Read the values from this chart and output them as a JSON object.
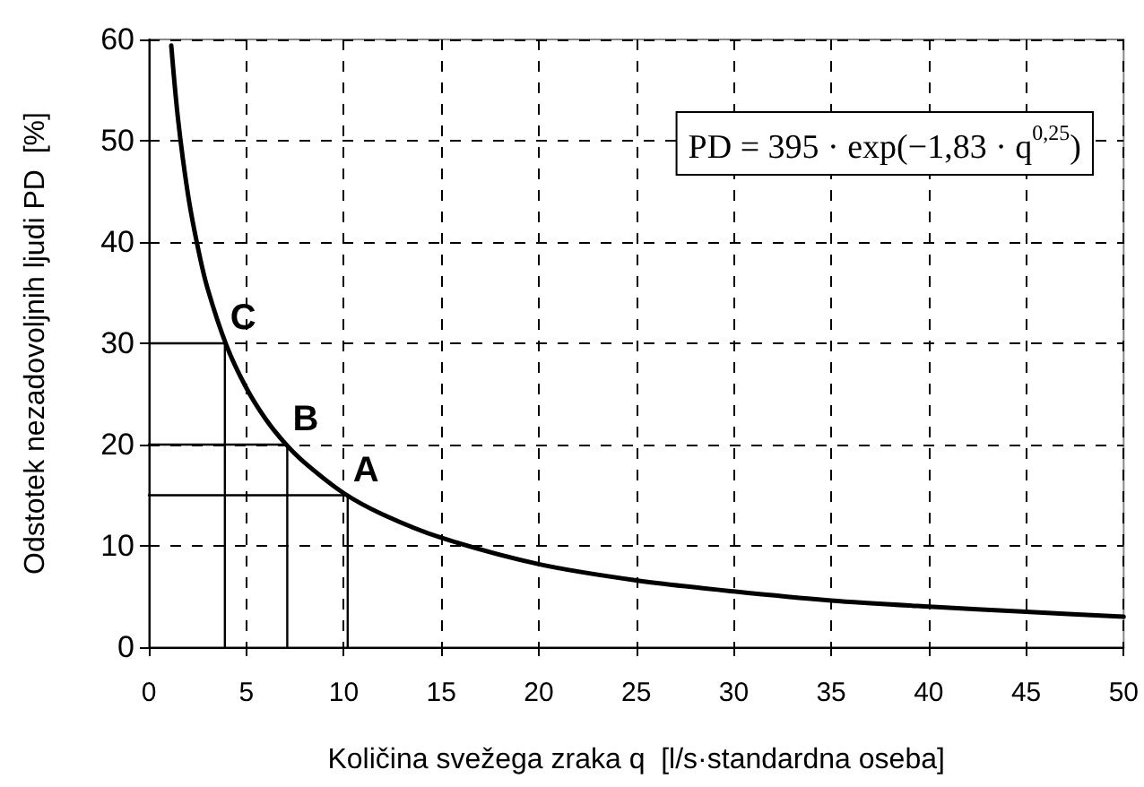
{
  "chart_data": {
    "type": "line",
    "xlabel": "Količina svežega zraka q  [l/s·standardna oseba]",
    "ylabel": "Odstotek nezadovoljnih ljudi PD  [%]",
    "series": [
      {
        "color": "#000000",
        "x": [
          1.15,
          1.5,
          2,
          2.5,
          3,
          4,
          5,
          6,
          7,
          8,
          10,
          12,
          15,
          20,
          25,
          30,
          35,
          40,
          45,
          50
        ],
        "values": [
          59.4,
          52.1,
          44.8,
          39.6,
          35.5,
          29.7,
          25.6,
          22.5,
          20.1,
          18.2,
          15.2,
          13.1,
          10.8,
          8.2,
          6.6,
          5.5,
          4.6,
          4.0,
          3.5,
          3.0
        ]
      },
      {
        "color": "#000000",
        "x": [
          0,
          3.9,
          3.9
        ],
        "values": [
          30,
          30,
          0
        ]
      },
      {
        "color": "#000000",
        "x": [
          0,
          7.1,
          7.1
        ],
        "values": [
          20,
          20,
          0
        ]
      },
      {
        "color": "#000000",
        "x": [
          0,
          10.2,
          10.2
        ],
        "values": [
          15,
          15,
          0
        ]
      }
    ],
    "xlim": [
      0,
      50
    ],
    "xticks": [
      0,
      5,
      10,
      15,
      20,
      25,
      30,
      35,
      40,
      45,
      50
    ],
    "ylim": [
      0,
      60
    ],
    "yticks": [
      0,
      10,
      20,
      30,
      40,
      50,
      60
    ],
    "grid": true,
    "marker": "none",
    "line_style": "solid",
    "annotations": [
      {
        "text": "C",
        "x": 3.9,
        "y": 30
      },
      {
        "text": "B",
        "x": 7.1,
        "y": 20
      },
      {
        "text": "A",
        "x": 10.2,
        "y": 15
      },
      "PD = 395 · exp(−1,83 · q$^{0,25}$)"
    ]
  }
}
